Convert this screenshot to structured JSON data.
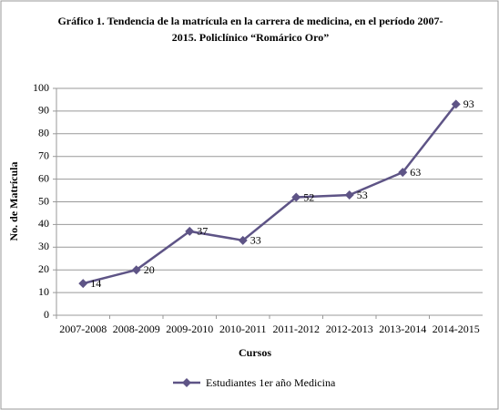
{
  "chart_data": {
    "type": "line",
    "title": "Gráfico 1. Tendencia de la matrícula en la carrera de medicina, en el período 2007-2015. Policlínico “Romárico Oro”",
    "x_label": "Cursos",
    "y_label": "No. de Matrícula",
    "categories": [
      "2007-2008",
      "2008-2009",
      "2009-2010",
      "2010-2011",
      "2011-2012",
      "2012-2013",
      "2013-2014",
      "2014-2015"
    ],
    "series": [
      {
        "name": "Estudiantes 1er año Medicina",
        "color": "#5e5486",
        "values": [
          14,
          20,
          37,
          33,
          52,
          53,
          63,
          93
        ]
      }
    ],
    "ylim": [
      0,
      100
    ],
    "yticks": [
      0,
      10,
      20,
      30,
      40,
      50,
      60,
      70,
      80,
      90,
      100
    ],
    "grid": true,
    "legend": "bottom"
  }
}
